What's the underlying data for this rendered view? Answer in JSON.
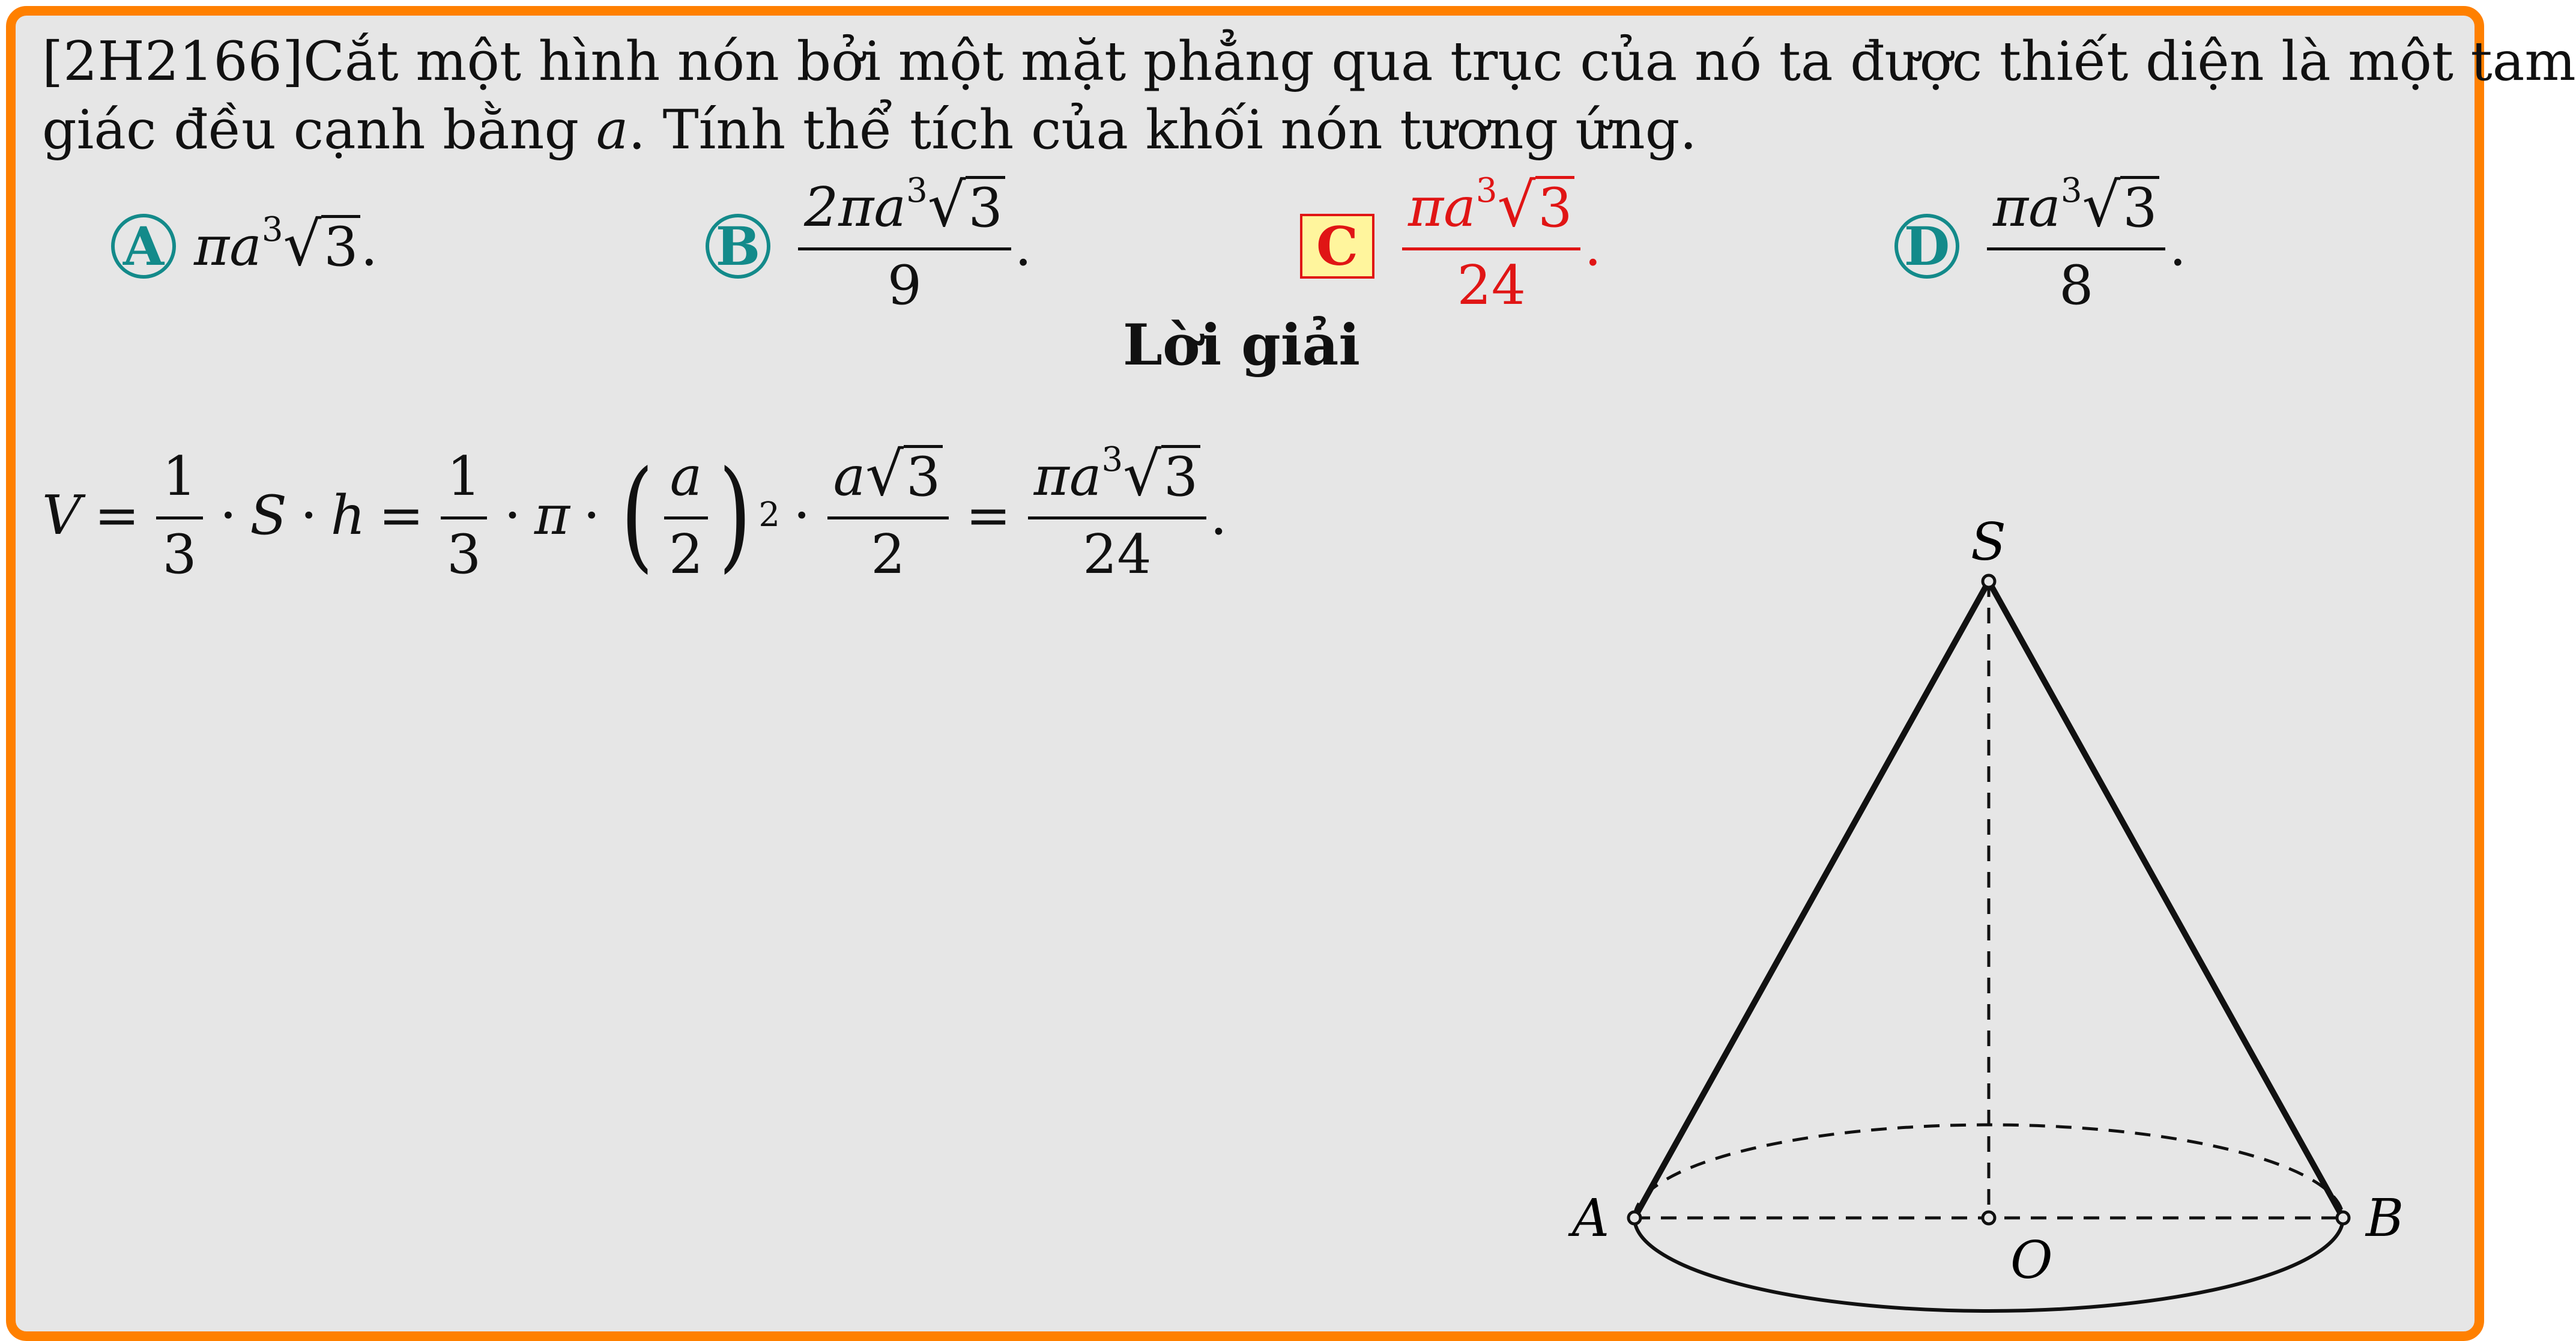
{
  "problem": {
    "line1": "[2H2166]Cắt một hình nón bởi một mặt phẳng qua trục của nó ta được thiết diện là một tam",
    "line2_start": "giác đều cạnh bằng ",
    "line2_var": "a",
    "line2_end": ". Tính thể tích của khối nón tương ứng."
  },
  "choices": [
    {
      "label": "A",
      "prefix": "π",
      "var": "a",
      "exp": "3",
      "sqrt": "3",
      "suffix": "."
    },
    {
      "label": "B",
      "num_prefix": "2π",
      "var": "a",
      "exp": "3",
      "sqrt": "3",
      "den": "9",
      "suffix": "."
    },
    {
      "label": "C",
      "num_prefix": "π",
      "var": "a",
      "exp": "3",
      "sqrt": "3",
      "den": "24",
      "suffix": ".",
      "correct": true
    },
    {
      "label": "D",
      "num_prefix": "π",
      "var": "a",
      "exp": "3",
      "sqrt": "3",
      "den": "8",
      "suffix": "."
    }
  ],
  "solution": {
    "heading": "Lời giải",
    "formula": {
      "V": "V",
      "eq": "=",
      "one": "1",
      "three": "3",
      "dot": "·",
      "S": "S",
      "h": "h",
      "pi": "π",
      "a": "a",
      "two": "2",
      "exp2": "2",
      "sqrt3": "3",
      "exp3": "3",
      "den24": "24",
      "period": "."
    }
  },
  "figure": {
    "labels": {
      "S": "S",
      "A": "A",
      "B": "B",
      "O": "O"
    }
  },
  "colors": {
    "frame": "#ff8000",
    "background": "#e6e6e6",
    "choice": "#138a8a",
    "correct": "#e01515",
    "highlight": "#fff59d"
  }
}
